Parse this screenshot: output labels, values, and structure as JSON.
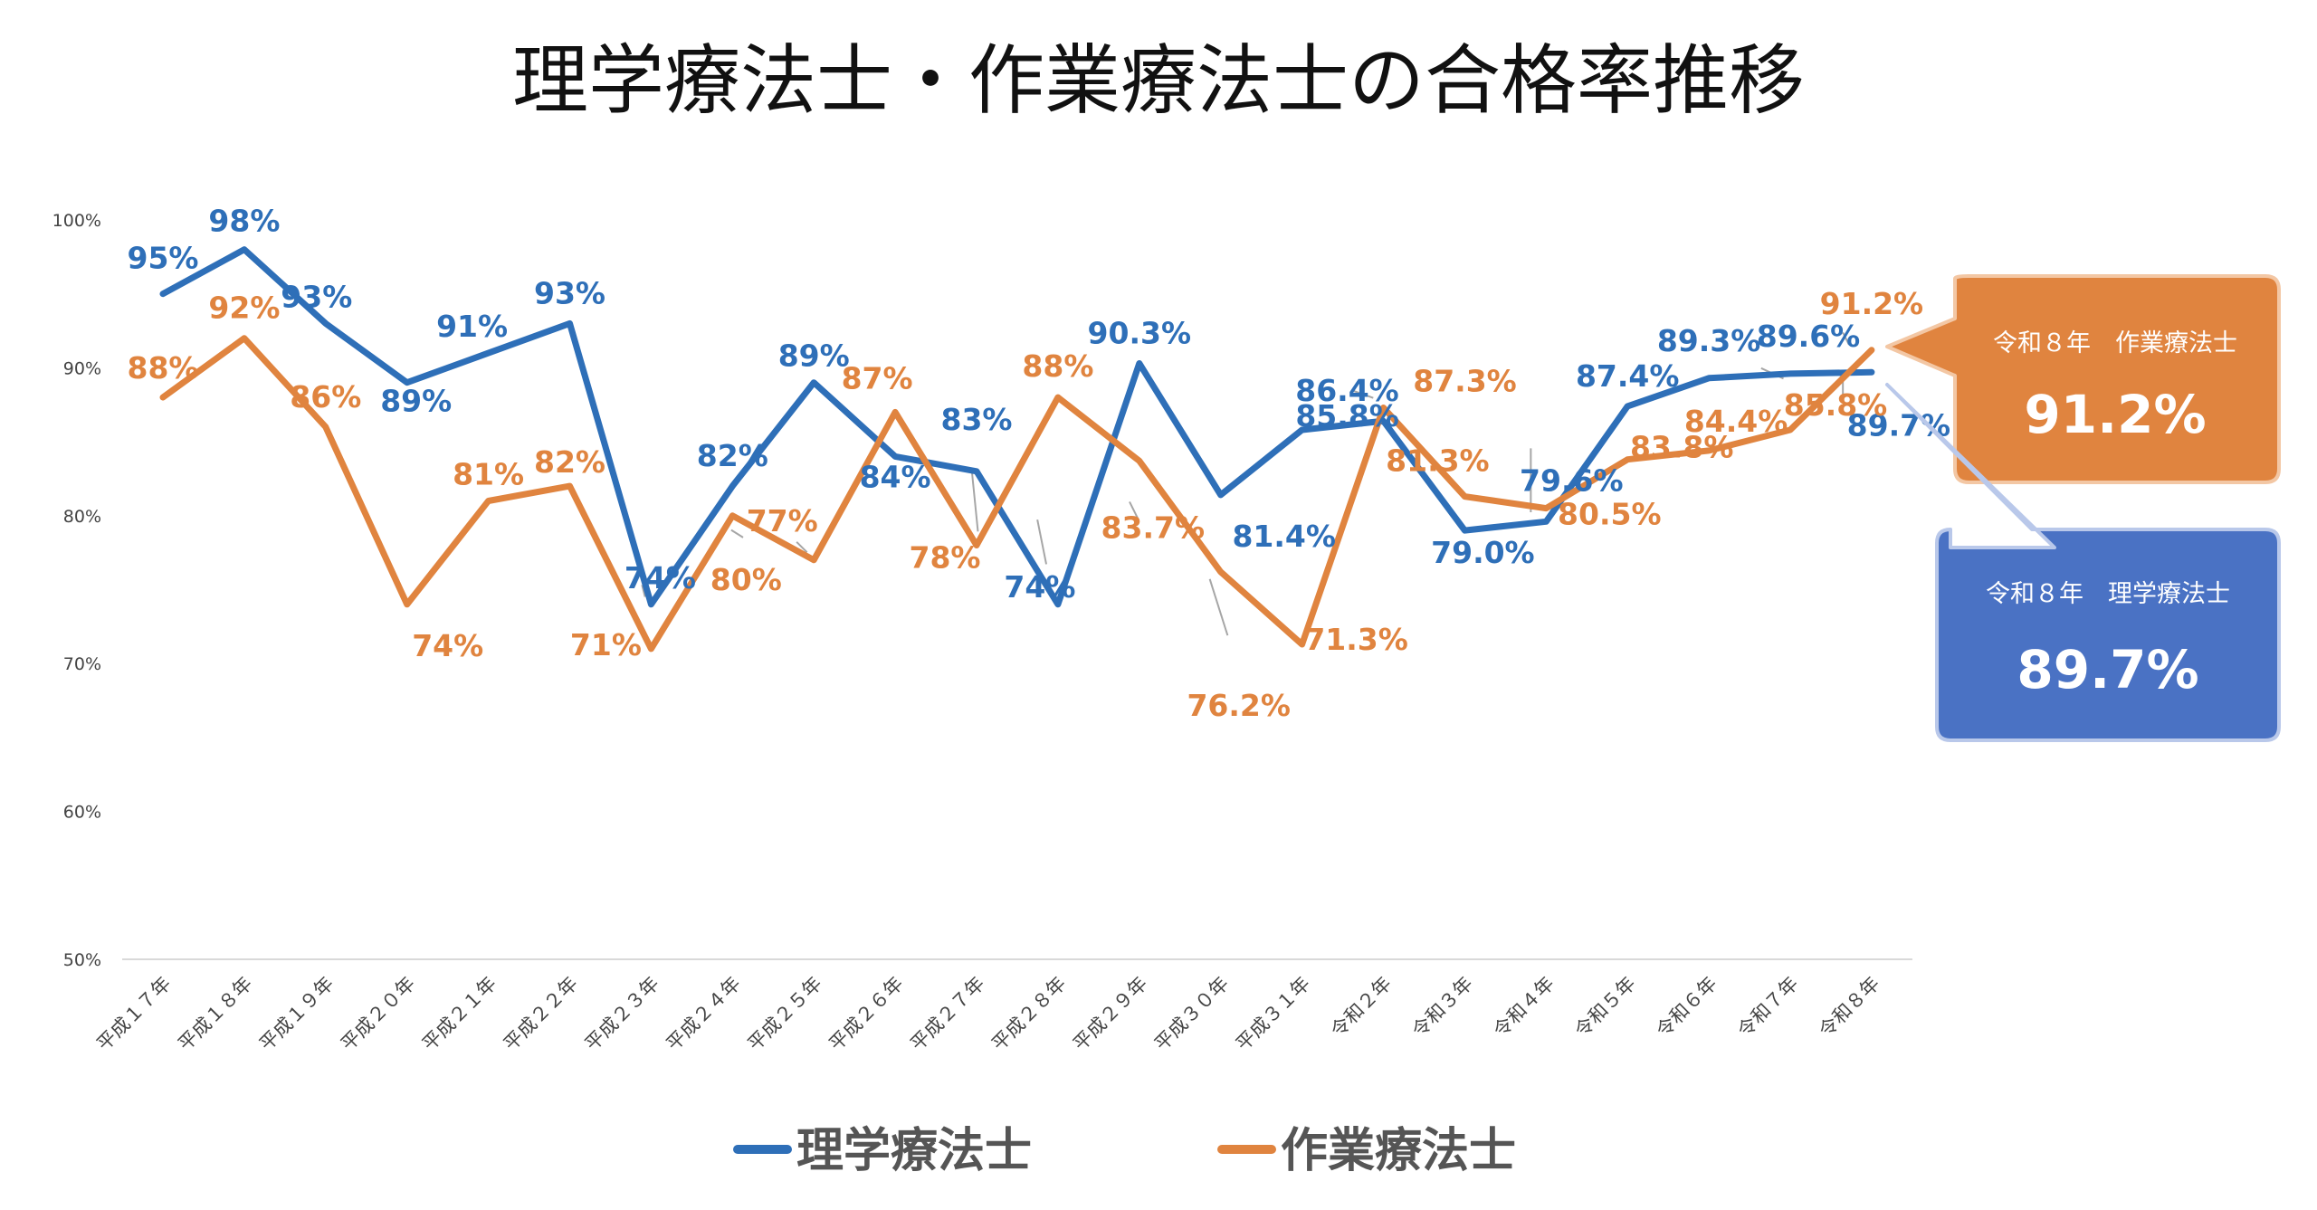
{
  "chart_data": {
    "type": "line",
    "title": "理学療法士・作業療法士の合格率推移",
    "ylim": [
      50,
      100
    ],
    "yticks": [
      "50%",
      "60%",
      "70%",
      "80%",
      "90%",
      "100%"
    ],
    "categories": [
      "平成１７年",
      "平成１８年",
      "平成１９年",
      "平成２０年",
      "平成２１年",
      "平成２２年",
      "平成２３年",
      "平成２４年",
      "平成２５年",
      "平成２６年",
      "平成２７年",
      "平成２８年",
      "平成２９年",
      "平成３０年",
      "平成３１年",
      "令和２年",
      "令和３年",
      "令和４年",
      "令和５年",
      "令和６年",
      "令和７年",
      "令和８年"
    ],
    "series": [
      {
        "name": "理学療法士",
        "color": "#2e6fb8",
        "values": [
          95,
          98,
          93,
          89,
          91,
          93,
          74,
          82,
          89,
          84,
          83,
          74,
          90.3,
          81.4,
          85.8,
          86.4,
          79.0,
          79.6,
          87.4,
          89.3,
          89.6,
          89.7
        ],
        "labels": [
          "95%",
          "98%",
          "93%",
          "89%",
          "91%",
          "93%",
          "74%",
          "82%",
          "89%",
          "84%",
          "83%",
          "74%",
          "90.3%",
          "81.4%",
          "85.8%",
          "86.4%",
          "79.0%",
          "79.6%",
          "87.4%",
          "89.3%",
          "89.6%",
          "89.7%"
        ]
      },
      {
        "name": "作業療法士",
        "color": "#e0843f",
        "values": [
          88,
          92,
          86,
          74,
          81,
          82,
          71,
          80,
          77,
          87,
          78,
          88,
          83.7,
          76.2,
          71.3,
          87.3,
          81.3,
          80.5,
          83.8,
          84.4,
          85.8,
          91.2
        ],
        "labels": [
          "88%",
          "92%",
          "86%",
          "74%",
          "81%",
          "82%",
          "71%",
          "80%",
          "77%",
          "87%",
          "78%",
          "88%",
          "83.7%",
          "76.2%",
          "71.3%",
          "87.3%",
          "81.3%",
          "80.5%",
          "83.8%",
          "84.4%",
          "85.8%",
          "91.2%"
        ]
      }
    ],
    "legend": [
      "理学療法士",
      "作業療法士"
    ]
  },
  "callouts": {
    "ot": {
      "caption": "令和８年　作業療法士",
      "value": "91.2%",
      "color": "#e0843f"
    },
    "pt": {
      "caption": "令和８年　理学療法士",
      "value": "89.7%",
      "color": "#4a72c4"
    }
  }
}
